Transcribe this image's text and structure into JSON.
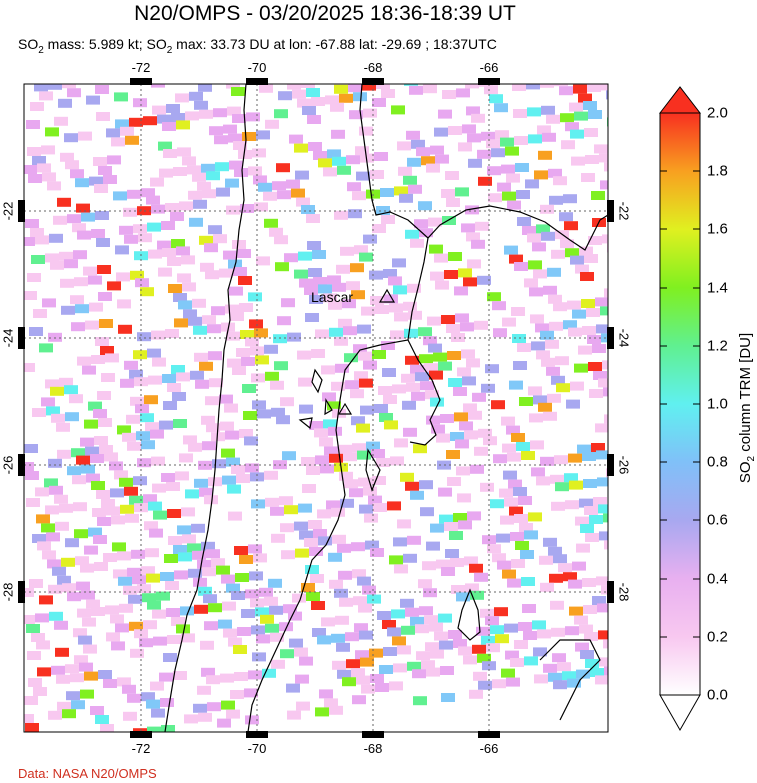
{
  "title": "N20/OMPS - 03/20/2025 18:36-18:39 UT",
  "subtitle": {
    "p1": "SO",
    "s1": "2",
    "p2": " mass: 5.989 kt; SO",
    "s2": "2",
    "p3": " max: 33.73 DU at lon: -67.88 lat: -29.69 ; 18:37UTC"
  },
  "map": {
    "lon_ticks": [
      "-72",
      "-70",
      "-68",
      "-66"
    ],
    "lat_ticks": [
      "-22",
      "-24",
      "-26",
      "-28"
    ],
    "volcano_label": "Lascar",
    "grid": "dashed"
  },
  "colorbar": {
    "ticks": [
      "2.0",
      "1.8",
      "1.6",
      "1.4",
      "1.2",
      "1.0",
      "0.8",
      "0.6",
      "0.4",
      "0.2",
      "0.0"
    ],
    "label_main": "SO",
    "label_sub": "2",
    "label_rest": " column TRM [DU]",
    "colors": [
      "#ffffff",
      "#f8c8f0",
      "#e8a8f0",
      "#a8a8f0",
      "#80c8f8",
      "#60f0f0",
      "#60f090",
      "#80f020",
      "#e0f020",
      "#f8a020",
      "#f83020"
    ]
  },
  "credit": "Data: NASA N20/OMPS"
}
